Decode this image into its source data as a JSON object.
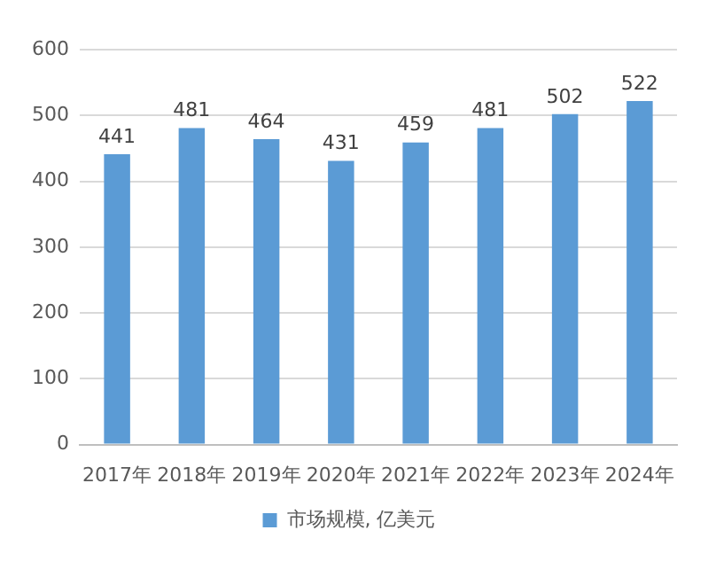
{
  "chart_data": {
    "type": "bar",
    "categories": [
      "2017年",
      "2018年",
      "2019年",
      "2020年",
      "2021年",
      "2022年",
      "2023年",
      "2024年"
    ],
    "series": [
      {
        "name": "市场规模, 亿美元",
        "color": "#5b9bd5",
        "values": [
          441,
          481,
          464,
          431,
          459,
          481,
          502,
          522
        ]
      }
    ],
    "ylim": [
      0,
      600
    ],
    "yticks": [
      0,
      100,
      200,
      300,
      400,
      500,
      600
    ],
    "grid": "y",
    "legend": "bottom",
    "data_labels": true
  }
}
